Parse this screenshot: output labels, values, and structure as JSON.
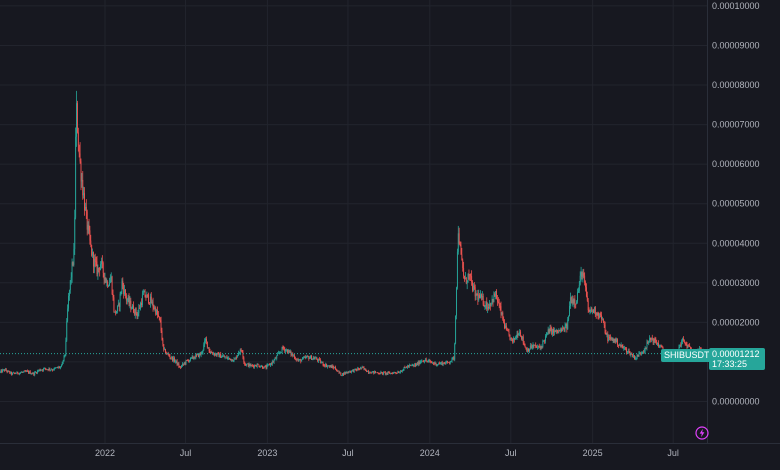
{
  "chart_data": {
    "type": "candlestick",
    "symbol": "SHIBUSDT",
    "last_price_label": "0.00001212",
    "countdown": "17:33:25",
    "y_ticks": [
      "0.00010000",
      "0.00009000",
      "0.00008000",
      "0.00007000",
      "0.00006000",
      "0.00005000",
      "0.00004000",
      "0.00003000",
      "0.00002000",
      "0.00001000",
      "0.00000000"
    ],
    "y_tick_values": [
      0.0001,
      9e-05,
      8e-05,
      7e-05,
      6e-05,
      5e-05,
      4e-05,
      3e-05,
      2e-05,
      1e-05,
      0
    ],
    "x_ticks": [
      {
        "label": "2022",
        "date": "2022-01-01"
      },
      {
        "label": "Jul",
        "date": "2022-07-01"
      },
      {
        "label": "2023",
        "date": "2023-01-01"
      },
      {
        "label": "Jul",
        "date": "2023-07-01"
      },
      {
        "label": "2024",
        "date": "2024-01-01"
      },
      {
        "label": "Jul",
        "date": "2024-07-01"
      },
      {
        "label": "2025",
        "date": "2025-01-01"
      },
      {
        "label": "Jul",
        "date": "2025-07-01"
      }
    ],
    "xlim": [
      "2021-05-10",
      "2025-09-15"
    ],
    "ylim": [
      -1.05e-05,
      0.0001015
    ],
    "grid": true,
    "colors": {
      "up": "#26a69a",
      "down": "#ef5350",
      "grid": "#22242d",
      "axis_text": "#b2b5be",
      "last_price": "#26a69a"
    },
    "price_path": [
      [
        "2021-05-10",
        7.4e-06
      ],
      [
        "2021-05-20",
        8e-06
      ],
      [
        "2021-06-05",
        7e-06
      ],
      [
        "2021-06-25",
        7.3e-06
      ],
      [
        "2021-07-10",
        7.5e-06
      ],
      [
        "2021-07-25",
        7e-06
      ],
      [
        "2021-08-05",
        7.9e-06
      ],
      [
        "2021-08-20",
        8.3e-06
      ],
      [
        "2021-09-05",
        8.1e-06
      ],
      [
        "2021-09-25",
        8.8e-06
      ],
      [
        "2021-10-03",
        1.2e-05
      ],
      [
        "2021-10-10",
        2.5e-05
      ],
      [
        "2021-10-18",
        3.3e-05
      ],
      [
        "2021-10-24",
        3.8e-05
      ],
      [
        "2021-10-28",
        7.5e-05
      ],
      [
        "2021-11-05",
        6.1e-05
      ],
      [
        "2021-11-12",
        5.4e-05
      ],
      [
        "2021-11-20",
        4.6e-05
      ],
      [
        "2021-11-28",
        4e-05
      ],
      [
        "2021-12-05",
        3.6e-05
      ],
      [
        "2021-12-15",
        3.3e-05
      ],
      [
        "2021-12-22",
        3.5e-05
      ],
      [
        "2022-01-05",
        3e-05
      ],
      [
        "2022-01-15",
        3.1e-05
      ],
      [
        "2022-01-22",
        2.2e-05
      ],
      [
        "2022-02-01",
        2.4e-05
      ],
      [
        "2022-02-08",
        3e-05
      ],
      [
        "2022-02-18",
        2.6e-05
      ],
      [
        "2022-03-01",
        2.4e-05
      ],
      [
        "2022-03-15",
        2.2e-05
      ],
      [
        "2022-03-28",
        2.7e-05
      ],
      [
        "2022-04-10",
        2.6e-05
      ],
      [
        "2022-04-25",
        2.3e-05
      ],
      [
        "2022-05-05",
        2e-05
      ],
      [
        "2022-05-12",
        1.3e-05
      ],
      [
        "2022-05-25",
        1.15e-05
      ],
      [
        "2022-06-10",
        1e-05
      ],
      [
        "2022-06-18",
        8.5e-06
      ],
      [
        "2022-07-01",
        1e-05
      ],
      [
        "2022-07-20",
        1.12e-05
      ],
      [
        "2022-08-05",
        1.2e-05
      ],
      [
        "2022-08-15",
        1.55e-05
      ],
      [
        "2022-08-25",
        1.25e-05
      ],
      [
        "2022-09-10",
        1.18e-05
      ],
      [
        "2022-10-01",
        1.1e-05
      ],
      [
        "2022-10-20",
        1.05e-05
      ],
      [
        "2022-10-28",
        1.25e-05
      ],
      [
        "2022-11-05",
        1.3e-05
      ],
      [
        "2022-11-10",
        9.5e-06
      ],
      [
        "2022-11-25",
        9e-06
      ],
      [
        "2022-12-10",
        9.2e-06
      ],
      [
        "2022-12-28",
        8.5e-06
      ],
      [
        "2023-01-15",
        1.02e-05
      ],
      [
        "2023-02-05",
        1.35e-05
      ],
      [
        "2023-02-15",
        1.28e-05
      ],
      [
        "2023-03-01",
        1.15e-05
      ],
      [
        "2023-03-12",
        1.02e-05
      ],
      [
        "2023-04-01",
        1.12e-05
      ],
      [
        "2023-04-20",
        1.08e-05
      ],
      [
        "2023-05-10",
        9.2e-06
      ],
      [
        "2023-06-01",
        8.5e-06
      ],
      [
        "2023-06-15",
        6.8e-06
      ],
      [
        "2023-07-01",
        7.5e-06
      ],
      [
        "2023-07-20",
        8e-06
      ],
      [
        "2023-08-01",
        8.5e-06
      ],
      [
        "2023-08-17",
        7.5e-06
      ],
      [
        "2023-09-10",
        7.2e-06
      ],
      [
        "2023-10-01",
        7.1e-06
      ],
      [
        "2023-10-25",
        7.5e-06
      ],
      [
        "2023-11-10",
        8.8e-06
      ],
      [
        "2023-12-01",
        9.2e-06
      ],
      [
        "2023-12-15",
        1.05e-05
      ],
      [
        "2023-12-25",
        1.02e-05
      ],
      [
        "2024-01-15",
        9.5e-06
      ],
      [
        "2024-02-10",
        9.8e-06
      ],
      [
        "2024-02-25",
        1.1e-05
      ],
      [
        "2024-03-01",
        3e-05
      ],
      [
        "2024-03-05",
        4.4e-05
      ],
      [
        "2024-03-10",
        3.7e-05
      ],
      [
        "2024-03-20",
        3e-05
      ],
      [
        "2024-03-28",
        3.2e-05
      ],
      [
        "2024-04-12",
        2.7e-05
      ],
      [
        "2024-04-25",
        2.6e-05
      ],
      [
        "2024-05-10",
        2.4e-05
      ],
      [
        "2024-05-28",
        2.7e-05
      ],
      [
        "2024-06-10",
        2.2e-05
      ],
      [
        "2024-06-20",
        1.8e-05
      ],
      [
        "2024-07-05",
        1.5e-05
      ],
      [
        "2024-07-20",
        1.8e-05
      ],
      [
        "2024-08-05",
        1.3e-05
      ],
      [
        "2024-08-20",
        1.4e-05
      ],
      [
        "2024-09-05",
        1.35e-05
      ],
      [
        "2024-09-25",
        1.8e-05
      ],
      [
        "2024-10-10",
        1.75e-05
      ],
      [
        "2024-10-25",
        1.8e-05
      ],
      [
        "2024-11-05",
        1.9e-05
      ],
      [
        "2024-11-12",
        2.6e-05
      ],
      [
        "2024-11-25",
        2.55e-05
      ],
      [
        "2024-12-08",
        3.3e-05
      ],
      [
        "2024-12-15",
        2.9e-05
      ],
      [
        "2024-12-22",
        2.3e-05
      ],
      [
        "2025-01-05",
        2.3e-05
      ],
      [
        "2025-01-20",
        2.15e-05
      ],
      [
        "2025-02-03",
        1.6e-05
      ],
      [
        "2025-02-20",
        1.55e-05
      ],
      [
        "2025-03-05",
        1.4e-05
      ],
      [
        "2025-03-20",
        1.28e-05
      ],
      [
        "2025-04-07",
        1.1e-05
      ],
      [
        "2025-04-25",
        1.3e-05
      ],
      [
        "2025-05-12",
        1.6e-05
      ],
      [
        "2025-05-28",
        1.45e-05
      ],
      [
        "2025-06-15",
        1.2e-05
      ],
      [
        "2025-06-25",
        1.1e-05
      ],
      [
        "2025-07-10",
        1.25e-05
      ],
      [
        "2025-07-22",
        1.55e-05
      ],
      [
        "2025-08-05",
        1.35e-05
      ],
      [
        "2025-08-20",
        1.28e-05
      ],
      [
        "2025-09-01",
        1.3e-05
      ],
      [
        "2025-09-12",
        1.21e-05
      ]
    ]
  }
}
